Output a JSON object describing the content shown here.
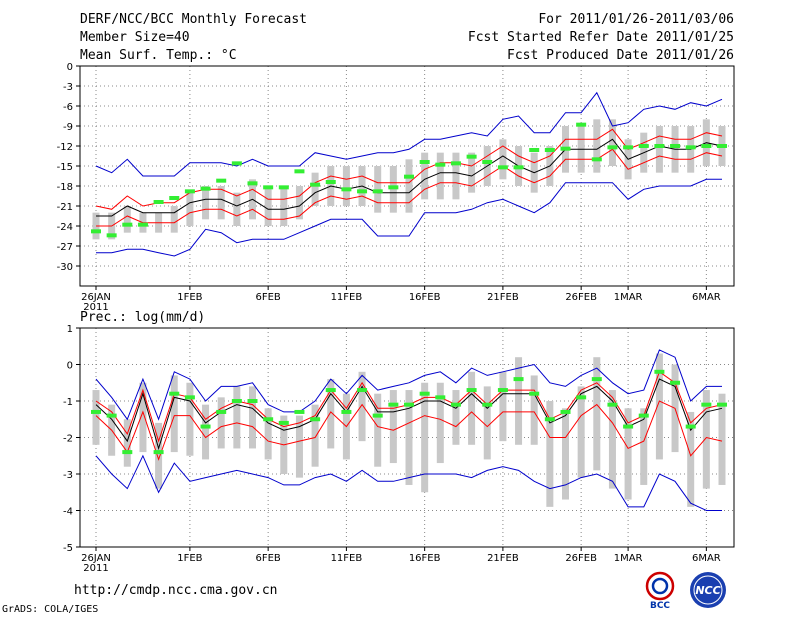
{
  "header": {
    "title": "DERF/NCC/BCC Monthly Forecast",
    "member": "Member Size=40",
    "variable": "Mean Surf. Temp.: °C",
    "period": "For 2011/01/26-2011/03/06",
    "started": "Fcst Started Refer Date 2011/01/25",
    "produced": "Fcst Produced Date 2011/01/26"
  },
  "footer": {
    "url": "http://cmdp.ncc.cma.gov.cn",
    "credit": "GrADS: COLA/IGES",
    "logo_left": "BCC",
    "logo_right": "NCC"
  },
  "colors": {
    "ensemble_mean": "#000000",
    "spread": "#ff0000",
    "extremes": "#0000cc",
    "box": "#c8c8c8",
    "observed": "#33ee33",
    "grid": "#888888"
  },
  "chart_data": [
    {
      "type": "line",
      "name": "temperature",
      "title": "Mean Surf. Temp.: °C",
      "ylabel": "°C",
      "ylim": [
        -33,
        0
      ],
      "yticks": [
        0,
        -3,
        -6,
        -9,
        -12,
        -15,
        -18,
        -21,
        -24,
        -27,
        -30
      ],
      "ytick_labels": [
        "0",
        "-3",
        "-6",
        "-9",
        "-12",
        "-15",
        "-18",
        "-21",
        "-24",
        "-27",
        "-30"
      ],
      "x_days": 40,
      "xticks": [
        {
          "day": 0,
          "label": "26JAN",
          "sub": "2011"
        },
        {
          "day": 6,
          "label": "1FEB",
          "sub": ""
        },
        {
          "day": 11,
          "label": "6FEB",
          "sub": ""
        },
        {
          "day": 16,
          "label": "11FEB",
          "sub": ""
        },
        {
          "day": 21,
          "label": "16FEB",
          "sub": ""
        },
        {
          "day": 26,
          "label": "21FEB",
          "sub": ""
        },
        {
          "day": 31,
          "label": "26FEB",
          "sub": ""
        },
        {
          "day": 34,
          "label": "1MAR",
          "sub": ""
        },
        {
          "day": 39,
          "label": "6MAR",
          "sub": ""
        }
      ],
      "series": [
        {
          "name": "ensemble mean",
          "role": "mean",
          "values": [
            -22.5,
            -22.5,
            -21,
            -22,
            -22,
            -22,
            -20.5,
            -20,
            -20,
            -21,
            -20,
            -21.5,
            -21.5,
            -21,
            -19,
            -18,
            -18.5,
            -18,
            -19,
            -19,
            -19,
            -17,
            -16,
            -16,
            -16.5,
            -15,
            -13.5,
            -15,
            -16,
            -15,
            -12.5,
            -12.5,
            -12.5,
            -11,
            -14,
            -13,
            -12,
            -12.5,
            -12.5,
            -11.5,
            -12
          ]
        },
        {
          "name": "mean + spread",
          "role": "upper",
          "values": [
            -21,
            -21.5,
            -19.5,
            -21,
            -20.5,
            -20.5,
            -19,
            -18.5,
            -18.5,
            -19.5,
            -18.5,
            -20,
            -20,
            -19.5,
            -17.5,
            -16.5,
            -17,
            -16.5,
            -17.5,
            -17.5,
            -17.5,
            -15.5,
            -14.5,
            -14.5,
            -15,
            -13.5,
            -12,
            -13.5,
            -14.5,
            -13.5,
            -11,
            -11,
            -11,
            -9.5,
            -12.5,
            -11.5,
            -10.5,
            -11,
            -11,
            -10,
            -10.5
          ]
        },
        {
          "name": "mean - spread",
          "role": "lower",
          "values": [
            -24,
            -24,
            -22.5,
            -23.5,
            -23.5,
            -23.5,
            -22,
            -21.5,
            -21.5,
            -22.5,
            -21.5,
            -23,
            -23,
            -22.5,
            -20.5,
            -19.5,
            -20,
            -19.5,
            -20.5,
            -20.5,
            -20.5,
            -18.5,
            -17.5,
            -17.5,
            -18,
            -16.5,
            -15,
            -16.5,
            -17.5,
            -16.5,
            -14,
            -14,
            -14,
            -12.5,
            -15.5,
            -14.5,
            -13.5,
            -14,
            -14,
            -13,
            -13.5
          ]
        },
        {
          "name": "ensemble max",
          "role": "max",
          "values": [
            -15,
            -16,
            -14,
            -16.5,
            -16.5,
            -16.5,
            -14.5,
            -14.5,
            -14.5,
            -15,
            -14,
            -15,
            -15,
            -15,
            -13,
            -13.5,
            -14,
            -13.5,
            -13,
            -13,
            -12.5,
            -11,
            -11,
            -10.5,
            -10,
            -10.5,
            -8,
            -7.5,
            -10,
            -10,
            -7,
            -7,
            -4,
            -9,
            -8.5,
            -6.5,
            -6,
            -6.5,
            -5.5,
            -6,
            -5
          ]
        },
        {
          "name": "ensemble min",
          "role": "min",
          "values": [
            -28,
            -28,
            -27.5,
            -27.5,
            -28,
            -28.5,
            -27.5,
            -24.5,
            -25,
            -26.5,
            -26,
            -26,
            -26,
            -25,
            -24,
            -23,
            -23,
            -23,
            -25.5,
            -25.5,
            -25.5,
            -22,
            -22,
            -22,
            -21.5,
            -20.5,
            -20,
            -21,
            -22,
            -20.5,
            -17.5,
            -17.5,
            -17.5,
            -17.5,
            -20,
            -18.5,
            -18,
            -18,
            -18,
            -17,
            -17
          ]
        }
      ],
      "boxes": [
        [
          -26,
          -22
        ],
        [
          -26,
          -22
        ],
        [
          -25,
          -21
        ],
        [
          -25,
          -22
        ],
        [
          -25,
          -22
        ],
        [
          -25,
          -21
        ],
        [
          -24,
          -19
        ],
        [
          -23,
          -18
        ],
        [
          -23,
          -18
        ],
        [
          -24,
          -19
        ],
        [
          -23,
          -17
        ],
        [
          -24,
          -18
        ],
        [
          -24,
          -18
        ],
        [
          -23,
          -18
        ],
        [
          -21,
          -16
        ],
        [
          -21,
          -15
        ],
        [
          -21,
          -15
        ],
        [
          -21,
          -15
        ],
        [
          -22,
          -15
        ],
        [
          -22,
          -15
        ],
        [
          -22,
          -14
        ],
        [
          -20,
          -13
        ],
        [
          -20,
          -13
        ],
        [
          -20,
          -13
        ],
        [
          -19,
          -13
        ],
        [
          -18,
          -12
        ],
        [
          -17,
          -11
        ],
        [
          -18,
          -12
        ],
        [
          -19,
          -13
        ],
        [
          -18,
          -12
        ],
        [
          -16,
          -9
        ],
        [
          -16,
          -9
        ],
        [
          -16,
          -8
        ],
        [
          -15,
          -8
        ],
        [
          -17,
          -11
        ],
        [
          -16,
          -10
        ],
        [
          -16,
          -9
        ],
        [
          -16,
          -9
        ],
        [
          -16,
          -9
        ],
        [
          -15,
          -8
        ],
        [
          -15,
          -9
        ]
      ],
      "observed": [
        -24.8,
        -25.4,
        -23.8,
        -23.8,
        -20.4,
        -19.8,
        -18.8,
        -18.4,
        -17.2,
        -14.6,
        -17.6,
        -18.2,
        -18.2,
        -15.8,
        -17.8,
        -17.4,
        -18.5,
        -18.8,
        -18.8,
        -18.2,
        -16.6,
        -14.4,
        -14.8,
        -14.6,
        -13.6,
        -14.4,
        -15.2,
        -15.2,
        -12.6,
        -12.6,
        -12.4,
        -8.8,
        -14,
        -12.2,
        -12.2,
        -12,
        -12,
        -12,
        -12.2,
        -12,
        -12
      ]
    },
    {
      "type": "line",
      "name": "precipitation",
      "title": "Prec.: log(mm/d)",
      "ylabel": "log(mm/d)",
      "ylim": [
        -5,
        1
      ],
      "yticks": [
        1,
        0,
        -1,
        -2,
        -3,
        -4,
        -5
      ],
      "ytick_labels": [
        "1",
        "0",
        "-1",
        "-2",
        "-3",
        "-4",
        "-5"
      ],
      "x_days": 40,
      "xticks": [
        {
          "day": 0,
          "label": "26JAN",
          "sub": "2011"
        },
        {
          "day": 6,
          "label": "1FEB",
          "sub": ""
        },
        {
          "day": 11,
          "label": "6FEB",
          "sub": ""
        },
        {
          "day": 16,
          "label": "11FEB",
          "sub": ""
        },
        {
          "day": 21,
          "label": "16FEB",
          "sub": ""
        },
        {
          "day": 26,
          "label": "21FEB",
          "sub": ""
        },
        {
          "day": 31,
          "label": "26FEB",
          "sub": ""
        },
        {
          "day": 34,
          "label": "1MAR",
          "sub": ""
        },
        {
          "day": 39,
          "label": "6MAR",
          "sub": ""
        }
      ],
      "series": [
        {
          "name": "ensemble mean",
          "role": "mean",
          "values": [
            -1.1,
            -1.5,
            -2.1,
            -0.8,
            -2.3,
            -0.9,
            -1,
            -1.6,
            -1.3,
            -1.1,
            -1.2,
            -1.6,
            -1.8,
            -1.7,
            -1.5,
            -0.8,
            -1.3,
            -0.6,
            -1.3,
            -1.3,
            -1.2,
            -1,
            -1,
            -1.2,
            -0.8,
            -1.2,
            -0.8,
            -0.8,
            -0.8,
            -1.6,
            -1.4,
            -0.8,
            -0.6,
            -1,
            -1.7,
            -1.5,
            -0.4,
            -0.6,
            -1.8,
            -1.3,
            -1.2
          ]
        },
        {
          "name": "mean + spread",
          "role": "upper",
          "values": [
            -1,
            -1.3,
            -1.9,
            -0.7,
            -2.1,
            -0.8,
            -0.9,
            -1.5,
            -1.2,
            -1,
            -1.1,
            -1.5,
            -1.7,
            -1.6,
            -1.4,
            -0.7,
            -1.2,
            -0.5,
            -1.2,
            -1.2,
            -1.1,
            -0.9,
            -0.9,
            -1.1,
            -0.7,
            -1.1,
            -0.7,
            -0.7,
            -0.7,
            -1.5,
            -1.3,
            -0.7,
            -0.5,
            -0.9,
            -1.6,
            -1.4,
            -0.2,
            -0.5,
            -1.6,
            -1.2,
            -1.1
          ]
        },
        {
          "name": "mean - spread",
          "role": "lower",
          "values": [
            -1.4,
            -1.8,
            -2.4,
            -1.3,
            -2.6,
            -1.4,
            -1.4,
            -2,
            -1.7,
            -1.6,
            -1.7,
            -2.1,
            -2.2,
            -2.1,
            -2,
            -1.3,
            -1.7,
            -1.1,
            -1.7,
            -1.8,
            -1.6,
            -1.4,
            -1.5,
            -1.7,
            -1.3,
            -1.7,
            -1.3,
            -1.3,
            -1.3,
            -2,
            -2,
            -1.4,
            -1.1,
            -1.6,
            -2.3,
            -2.1,
            -1,
            -1.2,
            -2.5,
            -2,
            -2.1
          ]
        },
        {
          "name": "ensemble max",
          "role": "max",
          "values": [
            -0.4,
            -0.9,
            -1.5,
            -0.4,
            -1.5,
            -0.2,
            -0.4,
            -1,
            -0.6,
            -0.6,
            -0.5,
            -1.1,
            -1.3,
            -1.3,
            -1,
            -0.4,
            -0.8,
            -0.3,
            -0.7,
            -0.6,
            -0.5,
            -0.3,
            -0.2,
            -0.5,
            -0.1,
            -0.3,
            -0.2,
            -0.1,
            0,
            -0.5,
            -0.6,
            -0.3,
            -0.1,
            -0.5,
            -0.8,
            -0.7,
            0.4,
            0.2,
            -1,
            -0.6,
            -0.6
          ]
        },
        {
          "name": "ensemble min",
          "role": "min",
          "values": [
            -2.5,
            -3,
            -3.4,
            -2.5,
            -3.5,
            -2.7,
            -3.2,
            -3.1,
            -3,
            -2.9,
            -3,
            -3.1,
            -3.3,
            -3.3,
            -3.1,
            -3,
            -3.2,
            -2.9,
            -3.2,
            -3.2,
            -3.1,
            -3,
            -3,
            -3,
            -3.1,
            -2.9,
            -2.8,
            -2.9,
            -3.2,
            -3.4,
            -3.3,
            -3.1,
            -3,
            -3.2,
            -3.9,
            -3.9,
            -3,
            -3.2,
            -3.8,
            -4,
            -4
          ]
        }
      ],
      "boxes": [
        [
          -2.2,
          -0.7
        ],
        [
          -2.5,
          -1.1
        ],
        [
          -2.8,
          -1.5
        ],
        [
          -2.4,
          -0.5
        ],
        [
          -3.4,
          -1.6
        ],
        [
          -2.4,
          -0.3
        ],
        [
          -2.5,
          -0.5
        ],
        [
          -2.6,
          -1.1
        ],
        [
          -2.3,
          -0.9
        ],
        [
          -2.3,
          -0.6
        ],
        [
          -2.3,
          -0.6
        ],
        [
          -2.6,
          -1.2
        ],
        [
          -3,
          -1.4
        ],
        [
          -3.1,
          -1.4
        ],
        [
          -2.8,
          -1.1
        ],
        [
          -2.3,
          -0.4
        ],
        [
          -2.6,
          -0.8
        ],
        [
          -2.1,
          -0.2
        ],
        [
          -2.8,
          -0.8
        ],
        [
          -2.7,
          -0.7
        ],
        [
          -3.3,
          -0.7
        ],
        [
          -3.5,
          -0.5
        ],
        [
          -2.7,
          -0.5
        ],
        [
          -2.2,
          -0.7
        ],
        [
          -2.2,
          -0.2
        ],
        [
          -2.6,
          -0.6
        ],
        [
          -2.1,
          -0.2
        ],
        [
          -2.2,
          0.2
        ],
        [
          -2.2,
          -0.3
        ],
        [
          -3.9,
          -1
        ],
        [
          -3.7,
          -1.2
        ],
        [
          -3.1,
          -0.6
        ],
        [
          -2.9,
          0.2
        ],
        [
          -3.4,
          -0.7
        ],
        [
          -3.7,
          -1.2
        ],
        [
          -3.3,
          -1.2
        ],
        [
          -2.6,
          0.3
        ],
        [
          -2.4,
          0
        ],
        [
          -3.9,
          -1.3
        ],
        [
          -3.4,
          -0.7
        ],
        [
          -3.3,
          -0.8
        ]
      ],
      "observed": [
        -1.3,
        -1.4,
        -2.4,
        null,
        -2.4,
        -0.8,
        -0.9,
        -1.7,
        -1.3,
        -1,
        -1,
        -1.5,
        -1.6,
        -1.3,
        -1.5,
        -0.7,
        -1.3,
        -0.7,
        -1.4,
        -1.1,
        -1.1,
        -0.8,
        -0.9,
        -1.1,
        -0.7,
        -1.1,
        -0.7,
        -0.4,
        -0.8,
        -1.5,
        -1.3,
        -0.9,
        -0.4,
        -1.1,
        -1.7,
        -1.4,
        -0.2,
        -0.5,
        -1.7,
        -1.1,
        -1.1
      ]
    }
  ]
}
